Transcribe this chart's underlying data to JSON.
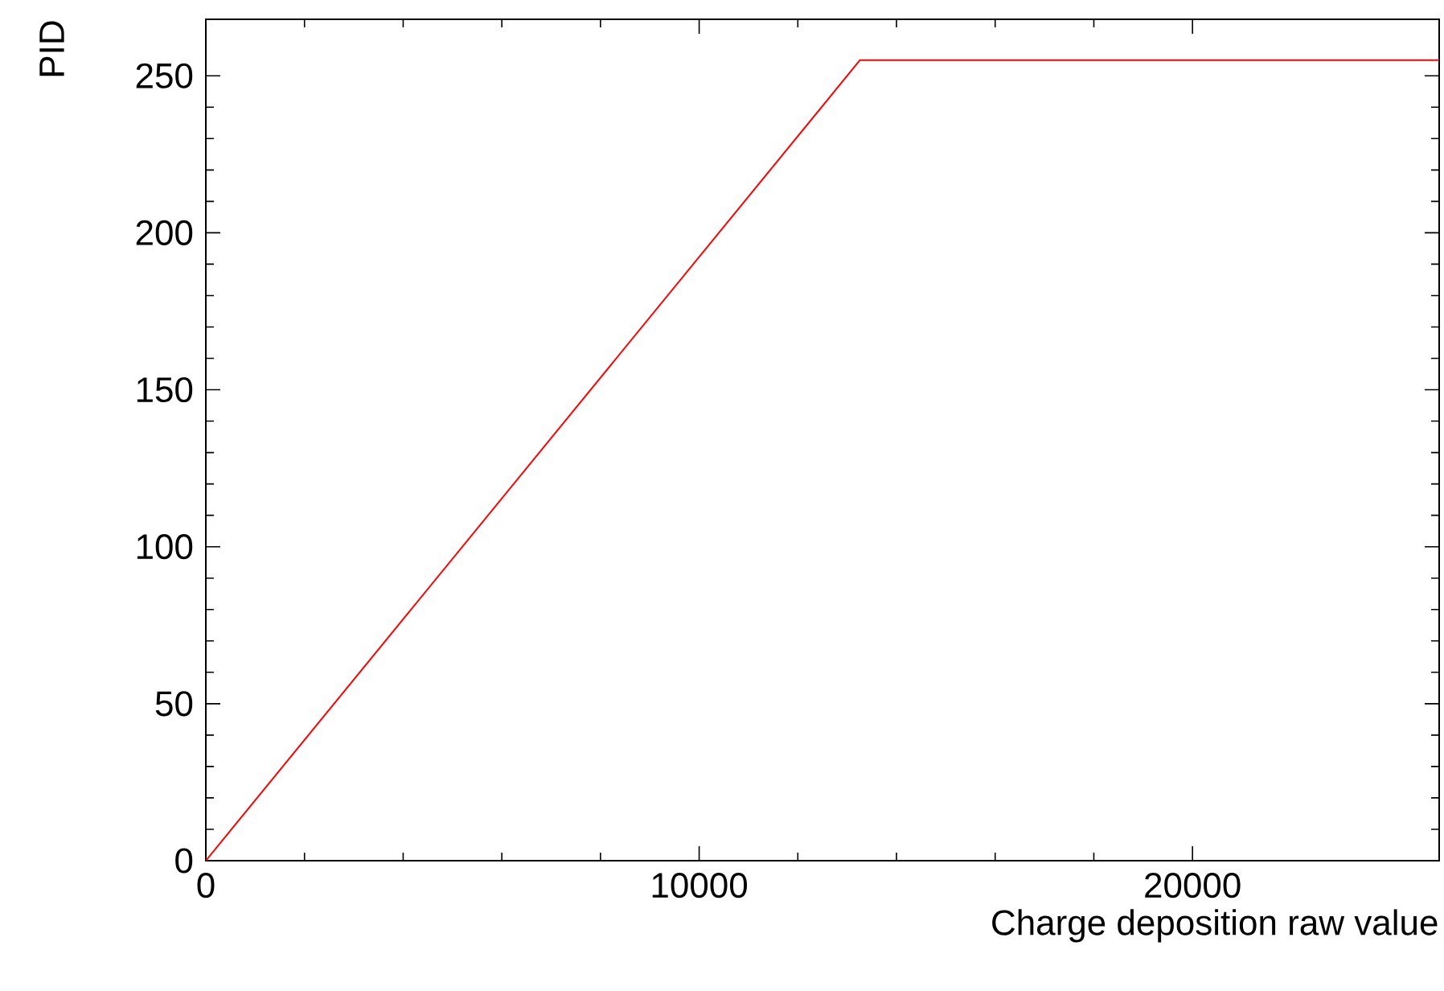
{
  "chart_data": {
    "type": "line",
    "xlabel": "Charge deposition raw value",
    "ylabel": "PID",
    "x": [
      0,
      13260,
      25000
    ],
    "series": [
      {
        "color": "#ff0000",
        "values": [
          0,
          255,
          255
        ]
      }
    ],
    "xlim": [
      0,
      25000
    ],
    "ylim": [
      0,
      268
    ],
    "xticks": [
      0,
      10000,
      20000
    ],
    "yticks": [
      0,
      50,
      100,
      150,
      200,
      250
    ],
    "grid": false,
    "marker": "none",
    "line_style": "solid"
  }
}
